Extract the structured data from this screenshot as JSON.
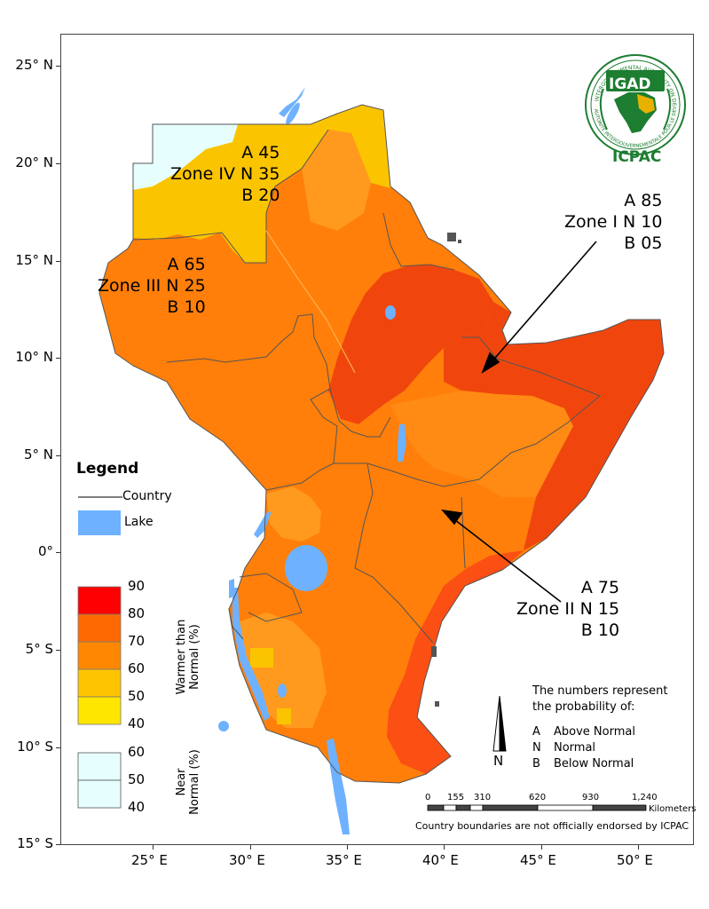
{
  "colors": {
    "cat_90": "#ff0000",
    "cat_80": "#ff6a00",
    "cat_70": "#ff8800",
    "cat_60": "#ffc400",
    "cat_50": "#ffe600",
    "near_normal": "#e6fffe",
    "lake": "#6eb1ff",
    "zone1": "#f0460e",
    "zone2": "#ff7b14",
    "coast": "#fb4f14",
    "sahara": "#f5c500",
    "logo_green": "#1d7d31"
  },
  "lat_ticks": [
    "25° N",
    "20° N",
    "15° N",
    "10° N",
    "5° N",
    "0°",
    "5° S",
    "10° S",
    "15° S"
  ],
  "lon_ticks": [
    "25° E",
    "30° E",
    "35° E",
    "40° E",
    "45° E",
    "50° E"
  ],
  "zones": {
    "zone1": {
      "name": "Zone I",
      "a": "A 85",
      "n": "N 10",
      "b": "B 05"
    },
    "zone2": {
      "name": "Zone II",
      "a": "A 75",
      "n": "N 15",
      "b": "B 10"
    },
    "zone3": {
      "name": "Zone III",
      "a": "A 65",
      "n": "N 25",
      "b": "B 10"
    },
    "zone4": {
      "name": "Zone IV",
      "a": "A 45",
      "n": "N 35",
      "b": "B 20"
    }
  },
  "legend": {
    "title": "Legend",
    "country": "Country",
    "lake": "Lake",
    "warmer_ramp": [
      "90",
      "80",
      "70",
      "60",
      "50",
      "40"
    ],
    "warmer_label_1": "Warmer than",
    "warmer_label_2": "Normal (%)",
    "near_ramp": [
      "60",
      "50",
      "40"
    ],
    "near_label_1": "Near",
    "near_label_2": "Normal (%)"
  },
  "notes": {
    "intro_1": "The numbers represent",
    "intro_2": "the probability of:",
    "codes": [
      {
        "code": "A",
        "label": "Above Normal"
      },
      {
        "code": "N",
        "label": "Normal"
      },
      {
        "code": "B",
        "label": "Below Normal"
      }
    ]
  },
  "north_arrow": "N",
  "scale": {
    "ticks": [
      "0",
      "155",
      "310",
      "620",
      "930",
      "1,240"
    ],
    "unit": "Kilometers"
  },
  "disclaimer": "Country boundaries are not officially endorsed by ICPAC",
  "logo": {
    "org": "IGAD",
    "name": "ICPAC",
    "ring_top": "INTERGOVERNMENTAL AUTHORITY ON DEVELOPMENT",
    "ring_bottom": "AUTORITE INTERGOUVERNEMENTALE POUR LE DEVELOPPEMENT"
  }
}
